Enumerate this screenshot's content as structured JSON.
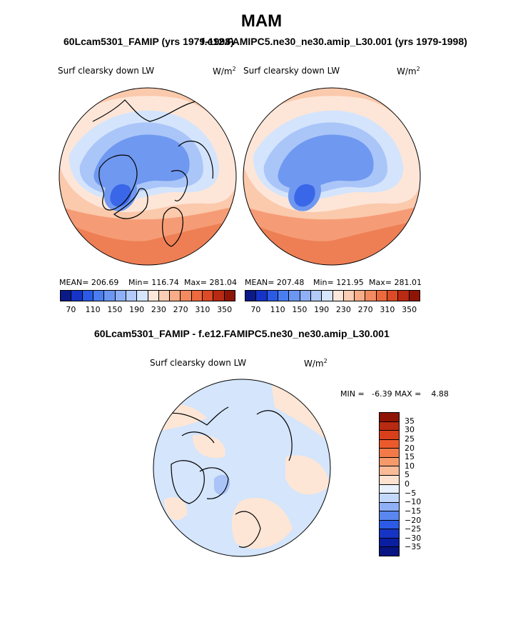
{
  "page": {
    "season_title": "MAM",
    "left_header": "60Lcam5301_FAMIP (yrs 1979-1998)",
    "right_header": "f.e12.FAMIPC5.ne30_ne30.amip_L30.001 (yrs 1979-1998)",
    "diff_header": "60Lcam5301_FAMIP - f.e12.FAMIPC5.ne30_ne30.amip_L30.001"
  },
  "panels": {
    "left": {
      "variable": "Surf clearsky down LW",
      "units": "W/m",
      "units_exp": "2",
      "mean_label": "MEAN= 206.69",
      "min_label": "Min= 116.74",
      "max_label": "Max= 281.04"
    },
    "right": {
      "variable": "Surf clearsky down LW",
      "units": "W/m",
      "units_exp": "2",
      "mean_label": "MEAN= 207.48",
      "min_label": "Min= 121.95",
      "max_label": "Max= 281.01"
    },
    "diff": {
      "variable": "Surf clearsky down LW",
      "units": "W/m",
      "units_exp": "2",
      "minmax_label": "MIN =   -6.39 MAX =    4.88"
    }
  },
  "chart_data": [
    {
      "type": "heatmap",
      "projection": "north polar stereographic",
      "title": "Surf clearsky down LW",
      "dataset": "60Lcam5301_FAMIP (yrs 1979-1998)",
      "units": "W/m^2",
      "mean": 206.69,
      "min": 116.74,
      "max": 281.04,
      "colorbar_ticks": [
        70,
        110,
        150,
        190,
        230,
        270,
        310,
        350
      ],
      "colorbar_colors": [
        "#0b1a86",
        "#1633c8",
        "#2a5ae6",
        "#4a7ef0",
        "#6b96f2",
        "#8fb0f6",
        "#b2cbfa",
        "#d6e6fd",
        "#fde7da",
        "#fbcdb4",
        "#f8ad88",
        "#f38a60",
        "#ec6a3e",
        "#dc4b25",
        "#b92a12",
        "#8e1505"
      ]
    },
    {
      "type": "heatmap",
      "projection": "north polar stereographic",
      "title": "Surf clearsky down LW",
      "dataset": "f.e12.FAMIPC5.ne30_ne30.amip_L30.001 (yrs 1979-1998)",
      "units": "W/m^2",
      "mean": 207.48,
      "min": 121.95,
      "max": 281.01,
      "colorbar_ticks": [
        70,
        110,
        150,
        190,
        230,
        270,
        310,
        350
      ],
      "colorbar_colors": [
        "#0b1a86",
        "#1633c8",
        "#2a5ae6",
        "#4a7ef0",
        "#6b96f2",
        "#8fb0f6",
        "#b2cbfa",
        "#d6e6fd",
        "#fde7da",
        "#fbcdb4",
        "#f8ad88",
        "#f38a60",
        "#ec6a3e",
        "#dc4b25",
        "#b92a12",
        "#8e1505"
      ]
    },
    {
      "type": "heatmap",
      "projection": "north polar stereographic",
      "title": "Surf clearsky down LW (difference)",
      "dataset": "60Lcam5301_FAMIP - f.e12.FAMIPC5.ne30_ne30.amip_L30.001",
      "units": "W/m^2",
      "min": -6.39,
      "max": 4.88,
      "colorbar_ticks": [
        "35",
        "30",
        "25",
        "20",
        "15",
        "10",
        "5",
        "0",
        "−5",
        "−10",
        "−15",
        "−20",
        "−25",
        "−30",
        "−35"
      ],
      "colorbar_colors": [
        "#8e1505",
        "#b92a12",
        "#d8401b",
        "#ec5a2c",
        "#f27a48",
        "#f69a6c",
        "#f9bb98",
        "#fde2cf",
        "#e9f1fd",
        "#c2d7fb",
        "#8fb0f6",
        "#5a86f0",
        "#2a5ae6",
        "#1533c4",
        "#0a1ea2",
        "#071481"
      ]
    }
  ],
  "colors": {
    "cold_deep": "#3a66e8",
    "cold_mid": "#6f98f0",
    "cold_light": "#aac5f8",
    "cold_pale": "#d4e4fc",
    "warm_pale": "#fde6d8",
    "warm_light": "#fbc9ac",
    "warm_mid": "#f59c76",
    "warm_deep": "#ee7a52",
    "diff_neg": "#d4e5fc",
    "diff_pos": "#fde6d6",
    "diff_negmid": "#aac4f7"
  }
}
